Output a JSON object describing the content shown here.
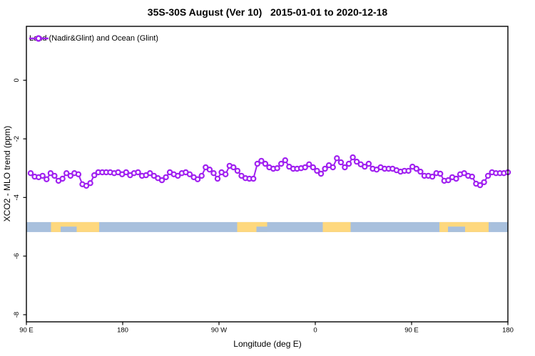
{
  "title": "35S-30S August (Ver 10)   2015-01-01 to 2020-12-18",
  "legend": {
    "label": "Land (Nadir&Glint) and Ocean (Glint)"
  },
  "axes": {
    "x": {
      "label": "Longitude (deg E)",
      "ticks": [
        "90 E",
        "180",
        "90 W",
        "0",
        "90 E",
        "180"
      ]
    },
    "y": {
      "label": "XCO2 - MLO trend (ppm)",
      "ticks": [
        0,
        -2,
        -4,
        -6,
        -8
      ]
    }
  },
  "colors": {
    "series": "#a020f0",
    "ocean": "#a8c0dd",
    "land": "#fed87e",
    "axis": "#000000",
    "background": "#ffffff"
  },
  "chart_data": {
    "type": "line",
    "title": "35S-30S August (Ver 10)   2015-01-01 to 2020-12-18",
    "xlabel": "Longitude (deg E)",
    "ylabel": "XCO2 - MLO trend (ppm)",
    "x_tick_labels": [
      "90 E",
      "180",
      "90 W",
      "0",
      "90 E",
      "180"
    ],
    "x_axis_note": "x axis spans 450 degrees of longitude starting at 90E and wrapping eastward: 90E -> 180 -> 90W -> 0 -> 90E -> 180",
    "x_start_deg": 94,
    "x_end_deg": 540,
    "ylim": [
      -8.25,
      1.84
    ],
    "y_ticks": [
      0,
      -2,
      -4,
      -6,
      -8
    ],
    "grid": false,
    "legend_position": "top-left",
    "series": [
      {
        "name": "Land (Nadir&Glint) and Ocean (Glint)",
        "marker": "open-circle",
        "values": [
          -3.17,
          -3.29,
          -3.31,
          -3.26,
          -3.38,
          -3.17,
          -3.26,
          -3.43,
          -3.36,
          -3.17,
          -3.26,
          -3.17,
          -3.21,
          -3.55,
          -3.6,
          -3.51,
          -3.24,
          -3.14,
          -3.14,
          -3.14,
          -3.14,
          -3.17,
          -3.14,
          -3.21,
          -3.14,
          -3.24,
          -3.17,
          -3.14,
          -3.26,
          -3.24,
          -3.17,
          -3.26,
          -3.34,
          -3.41,
          -3.31,
          -3.14,
          -3.21,
          -3.26,
          -3.17,
          -3.14,
          -3.21,
          -3.31,
          -3.38,
          -3.26,
          -2.97,
          -3.05,
          -3.17,
          -3.36,
          -3.14,
          -3.21,
          -2.92,
          -2.97,
          -3.09,
          -3.26,
          -3.34,
          -3.36,
          -3.36,
          -2.85,
          -2.75,
          -2.85,
          -2.97,
          -3.02,
          -3.0,
          -2.85,
          -2.73,
          -2.95,
          -3.02,
          -3.02,
          -3.0,
          -2.97,
          -2.87,
          -2.97,
          -3.09,
          -3.19,
          -3.02,
          -2.9,
          -2.97,
          -2.66,
          -2.8,
          -2.97,
          -2.85,
          -2.63,
          -2.78,
          -2.87,
          -2.95,
          -2.85,
          -3.02,
          -3.05,
          -2.97,
          -3.02,
          -3.02,
          -3.02,
          -3.07,
          -3.12,
          -3.09,
          -3.09,
          -2.95,
          -3.02,
          -3.12,
          -3.26,
          -3.26,
          -3.29,
          -3.17,
          -3.19,
          -3.43,
          -3.41,
          -3.31,
          -3.36,
          -3.21,
          -3.17,
          -3.26,
          -3.29,
          -3.53,
          -3.58,
          -3.48,
          -3.26,
          -3.14,
          -3.17,
          -3.17,
          -3.17,
          -3.14
        ]
      }
    ],
    "band": {
      "description": "land/ocean map strip for the 35S-30S latitude band",
      "y_top_ppm": -4.84,
      "y_bottom_ppm": -5.18,
      "land_patches_deg": [
        {
          "from": 113,
          "to": 158
        },
        {
          "from": 287,
          "to": 315
        },
        {
          "from": 367,
          "to": 393
        },
        {
          "from": 476,
          "to": 522
        }
      ],
      "ocean_notches_deg": [
        {
          "from": 122,
          "to": 137
        },
        {
          "from": 305,
          "to": 315
        },
        {
          "from": 484,
          "to": 500
        }
      ]
    }
  }
}
